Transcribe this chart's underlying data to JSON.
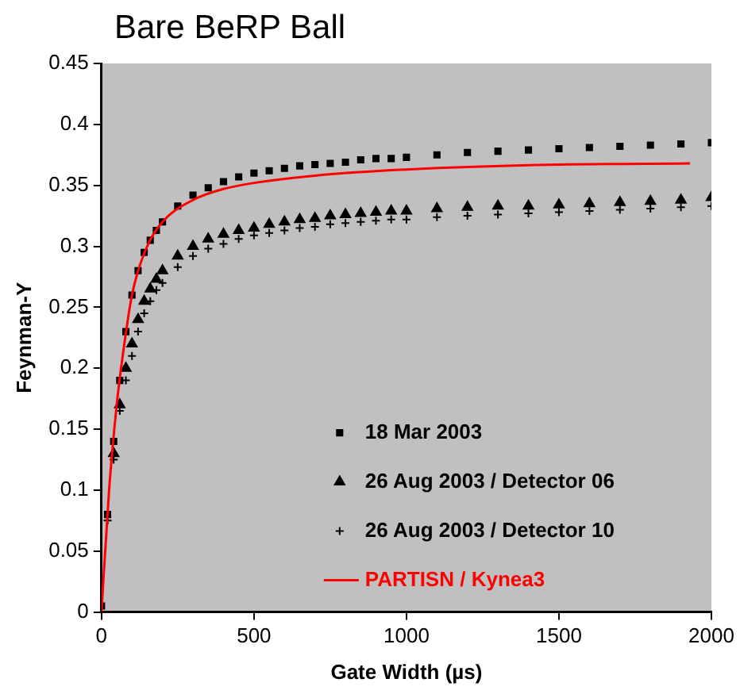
{
  "chart_data": {
    "type": "scatter",
    "title": "Bare BeRP Ball",
    "xlabel": "Gate Width (µs)",
    "ylabel": "Feynman-Y",
    "xlim": [
      0,
      2000
    ],
    "xticks": [
      0,
      500,
      1000,
      1500,
      2000
    ],
    "ylim": [
      0,
      0.45
    ],
    "yticks": [
      0,
      0.05,
      0.1,
      0.15,
      0.2,
      0.25,
      0.3,
      0.35,
      0.4,
      0.45
    ],
    "grid": false,
    "legend": "bottom right",
    "series": [
      {
        "name": "18 Mar 2003",
        "color": "#000000",
        "marker": "square",
        "x": [
          0,
          20,
          40,
          60,
          80,
          100,
          120,
          140,
          160,
          180,
          200,
          250,
          300,
          350,
          400,
          450,
          500,
          550,
          600,
          650,
          700,
          750,
          800,
          850,
          900,
          950,
          1000,
          1100,
          1200,
          1300,
          1400,
          1500,
          1600,
          1700,
          1800,
          1900,
          2000
        ],
        "values": [
          0.005,
          0.08,
          0.14,
          0.19,
          0.23,
          0.26,
          0.28,
          0.295,
          0.305,
          0.313,
          0.32,
          0.333,
          0.342,
          0.348,
          0.353,
          0.357,
          0.36,
          0.362,
          0.364,
          0.366,
          0.367,
          0.368,
          0.369,
          0.371,
          0.372,
          0.372,
          0.373,
          0.375,
          0.377,
          0.378,
          0.379,
          0.38,
          0.381,
          0.382,
          0.383,
          0.384,
          0.385
        ]
      },
      {
        "name": "26 Aug 2003 / Detector 06",
        "color": "#000000",
        "marker": "triangle",
        "x": [
          40,
          60,
          80,
          100,
          120,
          140,
          160,
          180,
          200,
          250,
          300,
          350,
          400,
          450,
          500,
          550,
          600,
          650,
          700,
          750,
          800,
          850,
          900,
          950,
          1000,
          1100,
          1200,
          1300,
          1400,
          1500,
          1600,
          1700,
          1800,
          1900,
          2000
        ],
        "values": [
          0.13,
          0.17,
          0.2,
          0.22,
          0.24,
          0.255,
          0.265,
          0.273,
          0.28,
          0.292,
          0.3,
          0.306,
          0.31,
          0.313,
          0.315,
          0.318,
          0.32,
          0.322,
          0.323,
          0.325,
          0.326,
          0.327,
          0.328,
          0.329,
          0.329,
          0.331,
          0.332,
          0.333,
          0.333,
          0.334,
          0.335,
          0.336,
          0.337,
          0.338,
          0.34
        ]
      },
      {
        "name": "26 Aug 2003 / Detector 10",
        "color": "#000000",
        "marker": "cross",
        "x": [
          20,
          40,
          60,
          80,
          100,
          120,
          140,
          160,
          180,
          200,
          250,
          300,
          350,
          400,
          450,
          500,
          550,
          600,
          650,
          700,
          750,
          800,
          850,
          900,
          950,
          1000,
          1100,
          1200,
          1300,
          1400,
          1500,
          1600,
          1700,
          1800,
          1900,
          2000
        ],
        "values": [
          0.075,
          0.125,
          0.165,
          0.19,
          0.21,
          0.23,
          0.245,
          0.255,
          0.264,
          0.27,
          0.283,
          0.292,
          0.298,
          0.302,
          0.306,
          0.309,
          0.311,
          0.313,
          0.315,
          0.316,
          0.318,
          0.319,
          0.32,
          0.321,
          0.322,
          0.322,
          0.324,
          0.325,
          0.326,
          0.327,
          0.328,
          0.329,
          0.33,
          0.331,
          0.332,
          0.333
        ]
      },
      {
        "name": "PARTISN / Kynea3",
        "color": "#ff0000",
        "type": "line",
        "marker": "none",
        "x": [
          0,
          25,
          50,
          75,
          100,
          150,
          200,
          300,
          400,
          500,
          700,
          1000,
          1500,
          1930
        ],
        "values": [
          0,
          0.1,
          0.17,
          0.22,
          0.26,
          0.3,
          0.32,
          0.338,
          0.347,
          0.352,
          0.358,
          0.363,
          0.367,
          0.368
        ]
      }
    ]
  }
}
